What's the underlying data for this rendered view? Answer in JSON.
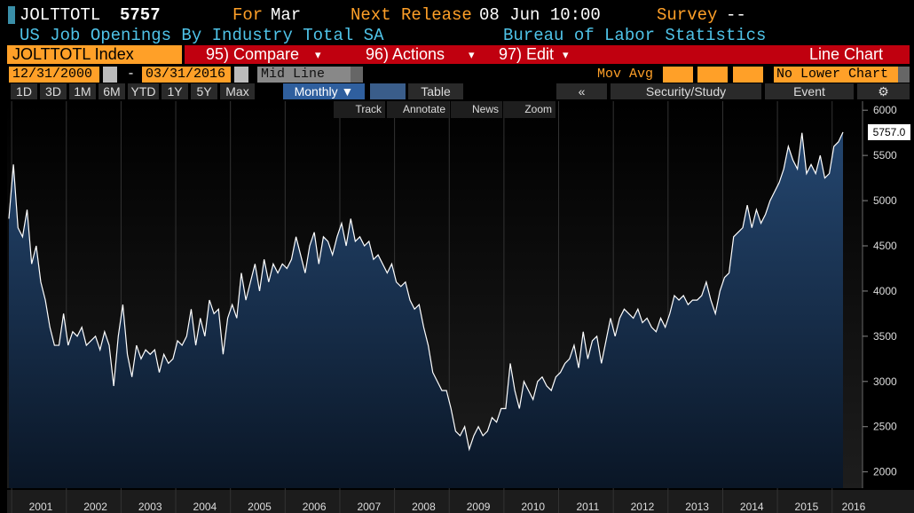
{
  "header": {
    "ticker": "JOLTTOTL",
    "last": "5757",
    "for_label": "For",
    "for_value": "Mar",
    "next_label": "Next Release",
    "next_value": "08 Jun 10:00",
    "survey_label": "Survey",
    "survey_value": "--",
    "description": "US Job Openings By Industry Total SA",
    "source": "Bureau of Labor Statistics"
  },
  "menu": {
    "security": "JOLTTOTL Index",
    "compare": "95) Compare",
    "actions": "96) Actions",
    "edit": "97) Edit",
    "chart_type": "Line Chart"
  },
  "settings": {
    "start": "12/31/2000",
    "dash": "-",
    "end": "03/31/2016",
    "mode": "Mid Line",
    "mov_avg": "Mov Avg",
    "lower": "No Lower Chart"
  },
  "toolbar": {
    "periods": [
      "1D",
      "3D",
      "1M",
      "6M",
      "YTD",
      "1Y",
      "5Y",
      "Max"
    ],
    "frequency": "Monthly ▼",
    "table": "Table",
    "back": "«",
    "study": "Security/Study",
    "event": "Event",
    "gear": "⚙",
    "tools": [
      "Track",
      "Annotate",
      "News",
      "Zoom"
    ]
  },
  "chart_data": {
    "type": "area",
    "color": "#ffffff",
    "fill_top": "#24466f",
    "fill_bottom": "#0a1626",
    "categories": [
      null,
      null,
      null,
      null,
      null,
      null,
      null,
      "2001",
      null,
      null,
      null,
      null,
      null,
      null,
      null,
      null,
      null,
      null,
      null,
      "2002",
      null,
      null,
      null,
      null,
      null,
      null,
      null,
      null,
      null,
      null,
      null,
      "2003",
      null,
      null,
      null,
      null,
      null,
      null,
      null,
      null,
      null,
      null,
      null,
      "2004",
      null,
      null,
      null,
      null,
      null,
      null,
      null,
      null,
      null,
      null,
      null,
      "2005",
      null,
      null,
      null,
      null,
      null,
      null,
      null,
      null,
      null,
      null,
      null,
      "2006",
      null,
      null,
      null,
      null,
      null,
      null,
      null,
      null,
      null,
      null,
      null,
      "2007",
      null,
      null,
      null,
      null,
      null,
      null,
      null,
      null,
      null,
      null,
      null,
      "2008",
      null,
      null,
      null,
      null,
      null,
      null,
      null,
      null,
      null,
      null,
      null,
      "2009",
      null,
      null,
      null,
      null,
      null,
      null,
      null,
      null,
      null,
      null,
      null,
      "2010",
      null,
      null,
      null,
      null,
      null,
      null,
      null,
      null,
      null,
      null,
      null,
      "2011",
      null,
      null,
      null,
      null,
      null,
      null,
      null,
      null,
      null,
      null,
      null,
      "2012",
      null,
      null,
      null,
      null,
      null,
      null,
      null,
      null,
      null,
      null,
      null,
      "2013",
      null,
      null,
      null,
      null,
      null,
      null,
      null,
      null,
      null,
      null,
      null,
      "2014",
      null,
      null,
      null,
      null,
      null,
      null,
      null,
      null,
      null,
      null,
      null,
      "2015",
      null,
      null,
      null,
      null,
      null,
      null,
      null,
      "2016"
    ],
    "values": [
      4800,
      5400,
      4700,
      4600,
      4900,
      4300,
      4500,
      4100,
      3900,
      3600,
      3400,
      3400,
      3750,
      3400,
      3550,
      3500,
      3600,
      3400,
      3450,
      3500,
      3350,
      3550,
      3400,
      2950,
      3500,
      3850,
      3300,
      3050,
      3400,
      3250,
      3350,
      3300,
      3350,
      3100,
      3300,
      3200,
      3250,
      3450,
      3400,
      3500,
      3800,
      3400,
      3700,
      3500,
      3900,
      3750,
      3800,
      3300,
      3700,
      3850,
      3700,
      4200,
      3900,
      4100,
      4300,
      4000,
      4350,
      4100,
      4300,
      4200,
      4300,
      4250,
      4350,
      4600,
      4400,
      4200,
      4500,
      4650,
      4300,
      4600,
      4550,
      4400,
      4600,
      4750,
      4500,
      4800,
      4550,
      4600,
      4500,
      4550,
      4350,
      4400,
      4300,
      4200,
      4300,
      4100,
      4050,
      4100,
      3900,
      3800,
      3850,
      3600,
      3400,
      3100,
      3000,
      2900,
      2900,
      2700,
      2450,
      2400,
      2500,
      2250,
      2400,
      2500,
      2400,
      2450,
      2600,
      2550,
      2700,
      2700,
      3200,
      2900,
      2700,
      3000,
      2900,
      2800,
      3000,
      3050,
      2950,
      2900,
      3050,
      3100,
      3200,
      3250,
      3400,
      3150,
      3550,
      3250,
      3450,
      3500,
      3200,
      3450,
      3700,
      3500,
      3700,
      3800,
      3750,
      3700,
      3800,
      3650,
      3700,
      3600,
      3550,
      3700,
      3600,
      3750,
      3950,
      3900,
      3950,
      3850,
      3900,
      3900,
      3950,
      4100,
      3900,
      3750,
      4000,
      4150,
      4200,
      4600,
      4650,
      4700,
      4950,
      4700,
      4900,
      4750,
      4850,
      5000,
      5100,
      5200,
      5350,
      5600,
      5450,
      5350,
      5750,
      5300,
      5400,
      5300,
      5500,
      5250,
      5300,
      5600,
      5650,
      5757
    ],
    "ylim": [
      1820,
      6100
    ],
    "yticks": [
      2000,
      2500,
      3000,
      3500,
      4000,
      4500,
      5000,
      5500,
      6000
    ],
    "last_price": {
      "value": 5757,
      "label": "5757.0"
    }
  }
}
